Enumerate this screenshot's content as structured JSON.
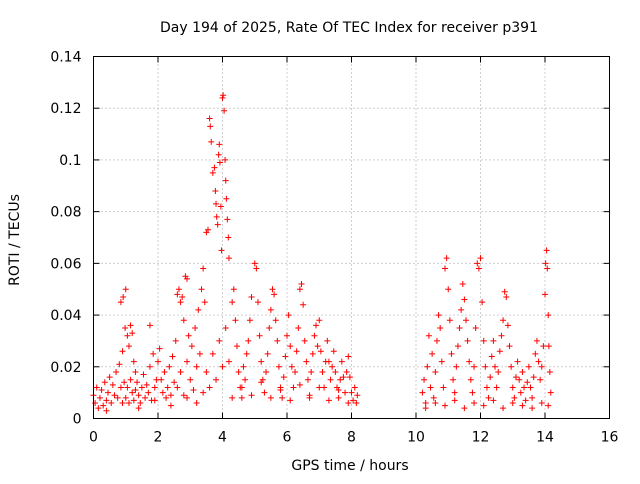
{
  "chart_data": {
    "type": "scatter",
    "title": "Day 194 of 2025, Rate Of TEC Index for receiver p391",
    "xlabel": "GPS time / hours",
    "ylabel": "ROTI / TECUs",
    "xlim": [
      0,
      16
    ],
    "ylim": [
      0,
      0.14
    ],
    "xticks": [
      0,
      2,
      4,
      6,
      8,
      10,
      12,
      14,
      16
    ],
    "xtick_labels": [
      "0",
      "2",
      "4",
      "6",
      "8",
      "10",
      "12",
      "14",
      "16"
    ],
    "yticks": [
      0,
      0.02,
      0.04,
      0.06,
      0.08,
      0.1,
      0.12,
      0.14
    ],
    "ytick_labels": [
      "0",
      "0.02",
      "0.04",
      "0.06",
      "0.08",
      "0.1",
      "0.12",
      "0.14"
    ],
    "grid": true,
    "marker": "+",
    "color": "#ff0000",
    "series": [
      {
        "name": "ROTI",
        "points": [
          [
            0.0,
            0.009
          ],
          [
            0.05,
            0.006
          ],
          [
            0.1,
            0.012
          ],
          [
            0.15,
            0.004
          ],
          [
            0.2,
            0.008
          ],
          [
            0.25,
            0.011
          ],
          [
            0.3,
            0.005
          ],
          [
            0.35,
            0.014
          ],
          [
            0.4,
            0.007
          ],
          [
            0.45,
            0.01
          ],
          [
            0.5,
            0.016
          ],
          [
            0.55,
            0.006
          ],
          [
            0.6,
            0.013
          ],
          [
            0.65,
            0.009
          ],
          [
            0.7,
            0.018
          ],
          [
            0.75,
            0.008
          ],
          [
            0.8,
            0.021
          ],
          [
            0.85,
            0.012
          ],
          [
            0.9,
            0.026
          ],
          [
            0.95,
            0.014
          ],
          [
            0.85,
            0.045
          ],
          [
            0.92,
            0.047
          ],
          [
            1.0,
            0.05
          ],
          [
            0.98,
            0.035
          ],
          [
            1.05,
            0.032
          ],
          [
            1.1,
            0.028
          ],
          [
            1.15,
            0.036
          ],
          [
            1.2,
            0.033
          ],
          [
            1.25,
            0.022
          ],
          [
            1.3,
            0.018
          ],
          [
            1.0,
            0.008
          ],
          [
            1.05,
            0.012
          ],
          [
            1.1,
            0.006
          ],
          [
            1.15,
            0.015
          ],
          [
            1.2,
            0.01
          ],
          [
            1.25,
            0.007
          ],
          [
            1.3,
            0.011
          ],
          [
            1.35,
            0.014
          ],
          [
            1.4,
            0.009
          ],
          [
            1.45,
            0.006
          ],
          [
            1.5,
            0.012
          ],
          [
            1.55,
            0.017
          ],
          [
            1.6,
            0.008
          ],
          [
            1.65,
            0.013
          ],
          [
            1.7,
            0.01
          ],
          [
            1.75,
            0.02
          ],
          [
            1.8,
            0.007
          ],
          [
            1.85,
            0.025
          ],
          [
            1.9,
            0.012
          ],
          [
            1.95,
            0.015
          ],
          [
            1.75,
            0.036
          ],
          [
            2.0,
            0.022
          ],
          [
            2.05,
            0.027
          ],
          [
            2.1,
            0.015
          ],
          [
            2.15,
            0.01
          ],
          [
            2.2,
            0.018
          ],
          [
            2.25,
            0.008
          ],
          [
            2.3,
            0.012
          ],
          [
            2.35,
            0.02
          ],
          [
            2.4,
            0.009
          ],
          [
            2.45,
            0.024
          ],
          [
            2.5,
            0.014
          ],
          [
            2.55,
            0.03
          ],
          [
            2.6,
            0.048
          ],
          [
            2.65,
            0.05
          ],
          [
            2.7,
            0.045
          ],
          [
            2.75,
            0.047
          ],
          [
            2.8,
            0.038
          ],
          [
            2.85,
            0.055
          ],
          [
            2.9,
            0.054
          ],
          [
            2.95,
            0.032
          ],
          [
            2.6,
            0.012
          ],
          [
            2.7,
            0.018
          ],
          [
            2.8,
            0.009
          ],
          [
            2.9,
            0.022
          ],
          [
            3.0,
            0.015
          ],
          [
            3.05,
            0.028
          ],
          [
            3.1,
            0.011
          ],
          [
            3.15,
            0.035
          ],
          [
            3.2,
            0.02
          ],
          [
            3.25,
            0.042
          ],
          [
            3.3,
            0.025
          ],
          [
            3.35,
            0.05
          ],
          [
            3.4,
            0.058
          ],
          [
            3.45,
            0.045
          ],
          [
            3.5,
            0.072
          ],
          [
            3.55,
            0.073
          ],
          [
            3.6,
            0.116
          ],
          [
            3.62,
            0.113
          ],
          [
            3.65,
            0.107
          ],
          [
            3.7,
            0.095
          ],
          [
            3.75,
            0.097
          ],
          [
            3.78,
            0.088
          ],
          [
            3.8,
            0.083
          ],
          [
            3.82,
            0.078
          ],
          [
            3.85,
            0.075
          ],
          [
            3.88,
            0.102
          ],
          [
            3.9,
            0.106
          ],
          [
            3.92,
            0.099
          ],
          [
            3.95,
            0.082
          ],
          [
            3.97,
            0.065
          ],
          [
            4.0,
            0.124
          ],
          [
            4.02,
            0.125
          ],
          [
            4.05,
            0.119
          ],
          [
            4.08,
            0.1
          ],
          [
            4.1,
            0.092
          ],
          [
            4.12,
            0.085
          ],
          [
            4.15,
            0.077
          ],
          [
            4.18,
            0.07
          ],
          [
            4.2,
            0.062
          ],
          [
            3.4,
            0.01
          ],
          [
            3.5,
            0.018
          ],
          [
            3.6,
            0.012
          ],
          [
            3.7,
            0.025
          ],
          [
            3.8,
            0.015
          ],
          [
            3.9,
            0.03
          ],
          [
            4.0,
            0.02
          ],
          [
            4.1,
            0.035
          ],
          [
            4.2,
            0.022
          ],
          [
            4.3,
            0.045
          ],
          [
            4.35,
            0.05
          ],
          [
            4.4,
            0.038
          ],
          [
            4.45,
            0.028
          ],
          [
            4.5,
            0.018
          ],
          [
            4.55,
            0.012
          ],
          [
            4.6,
            0.008
          ],
          [
            4.65,
            0.02
          ],
          [
            4.7,
            0.015
          ],
          [
            4.75,
            0.025
          ],
          [
            4.8,
            0.03
          ],
          [
            4.85,
            0.038
          ],
          [
            4.9,
            0.047
          ],
          [
            5.0,
            0.06
          ],
          [
            5.05,
            0.058
          ],
          [
            5.1,
            0.045
          ],
          [
            5.15,
            0.032
          ],
          [
            5.2,
            0.022
          ],
          [
            5.25,
            0.015
          ],
          [
            5.3,
            0.01
          ],
          [
            5.35,
            0.018
          ],
          [
            5.4,
            0.025
          ],
          [
            5.45,
            0.035
          ],
          [
            5.5,
            0.042
          ],
          [
            5.55,
            0.05
          ],
          [
            5.6,
            0.048
          ],
          [
            5.65,
            0.038
          ],
          [
            5.7,
            0.03
          ],
          [
            5.75,
            0.02
          ],
          [
            5.8,
            0.012
          ],
          [
            5.85,
            0.008
          ],
          [
            5.9,
            0.016
          ],
          [
            5.95,
            0.024
          ],
          [
            6.0,
            0.032
          ],
          [
            6.05,
            0.04
          ],
          [
            6.1,
            0.028
          ],
          [
            6.15,
            0.02
          ],
          [
            6.2,
            0.012
          ],
          [
            6.25,
            0.018
          ],
          [
            6.3,
            0.026
          ],
          [
            6.35,
            0.035
          ],
          [
            6.4,
            0.05
          ],
          [
            6.45,
            0.052
          ],
          [
            6.5,
            0.044
          ],
          [
            6.55,
            0.03
          ],
          [
            6.6,
            0.022
          ],
          [
            6.65,
            0.015
          ],
          [
            6.7,
            0.009
          ],
          [
            6.75,
            0.018
          ],
          [
            6.8,
            0.025
          ],
          [
            6.85,
            0.032
          ],
          [
            6.9,
            0.036
          ],
          [
            6.95,
            0.028
          ],
          [
            7.0,
            0.038
          ],
          [
            7.05,
            0.026
          ],
          [
            7.1,
            0.018
          ],
          [
            7.15,
            0.012
          ],
          [
            7.2,
            0.022
          ],
          [
            7.25,
            0.03
          ],
          [
            7.3,
            0.022
          ],
          [
            7.35,
            0.015
          ],
          [
            7.4,
            0.02
          ],
          [
            7.45,
            0.026
          ],
          [
            7.5,
            0.018
          ],
          [
            7.55,
            0.012
          ],
          [
            7.6,
            0.008
          ],
          [
            7.65,
            0.015
          ],
          [
            7.7,
            0.022
          ],
          [
            7.75,
            0.016
          ],
          [
            7.8,
            0.01
          ],
          [
            7.85,
            0.018
          ],
          [
            7.9,
            0.024
          ],
          [
            7.95,
            0.016
          ],
          [
            8.0,
            0.01
          ],
          [
            8.05,
            0.007
          ],
          [
            8.1,
            0.012
          ],
          [
            8.15,
            0.006
          ],
          [
            8.18,
            0.009
          ],
          [
            4.3,
            0.008
          ],
          [
            4.6,
            0.012
          ],
          [
            4.9,
            0.009
          ],
          [
            5.2,
            0.014
          ],
          [
            5.5,
            0.008
          ],
          [
            5.8,
            0.011
          ],
          [
            6.1,
            0.007
          ],
          [
            6.4,
            0.013
          ],
          [
            6.7,
            0.008
          ],
          [
            7.0,
            0.012
          ],
          [
            7.3,
            0.007
          ],
          [
            7.6,
            0.011
          ],
          [
            7.9,
            0.006
          ],
          [
            3.2,
            0.006
          ],
          [
            2.9,
            0.008
          ],
          [
            2.4,
            0.005
          ],
          [
            1.9,
            0.007
          ],
          [
            1.4,
            0.004
          ],
          [
            0.9,
            0.006
          ],
          [
            0.4,
            0.003
          ],
          [
            10.2,
            0.01
          ],
          [
            10.25,
            0.015
          ],
          [
            10.3,
            0.006
          ],
          [
            10.35,
            0.02
          ],
          [
            10.4,
            0.032
          ],
          [
            10.45,
            0.012
          ],
          [
            10.5,
            0.025
          ],
          [
            10.55,
            0.008
          ],
          [
            10.6,
            0.018
          ],
          [
            10.65,
            0.03
          ],
          [
            10.7,
            0.04
          ],
          [
            10.75,
            0.035
          ],
          [
            10.8,
            0.022
          ],
          [
            10.85,
            0.012
          ],
          [
            10.9,
            0.058
          ],
          [
            10.95,
            0.062
          ],
          [
            11.0,
            0.05
          ],
          [
            11.05,
            0.038
          ],
          [
            11.1,
            0.025
          ],
          [
            11.15,
            0.015
          ],
          [
            11.2,
            0.01
          ],
          [
            11.25,
            0.02
          ],
          [
            11.3,
            0.028
          ],
          [
            11.35,
            0.035
          ],
          [
            11.4,
            0.042
          ],
          [
            11.45,
            0.052
          ],
          [
            11.5,
            0.046
          ],
          [
            11.55,
            0.038
          ],
          [
            11.6,
            0.03
          ],
          [
            11.65,
            0.022
          ],
          [
            11.7,
            0.015
          ],
          [
            11.75,
            0.01
          ],
          [
            11.8,
            0.02
          ],
          [
            11.85,
            0.035
          ],
          [
            11.9,
            0.06
          ],
          [
            11.95,
            0.058
          ],
          [
            12.0,
            0.062
          ],
          [
            12.05,
            0.045
          ],
          [
            12.1,
            0.03
          ],
          [
            12.15,
            0.02
          ],
          [
            12.2,
            0.012
          ],
          [
            12.25,
            0.008
          ],
          [
            12.3,
            0.016
          ],
          [
            12.35,
            0.024
          ],
          [
            12.4,
            0.03
          ],
          [
            12.45,
            0.02
          ],
          [
            12.5,
            0.012
          ],
          [
            12.55,
            0.018
          ],
          [
            12.6,
            0.026
          ],
          [
            12.65,
            0.032
          ],
          [
            12.7,
            0.038
          ],
          [
            12.75,
            0.049
          ],
          [
            12.8,
            0.047
          ],
          [
            12.85,
            0.036
          ],
          [
            12.9,
            0.028
          ],
          [
            12.95,
            0.02
          ],
          [
            13.0,
            0.012
          ],
          [
            13.05,
            0.008
          ],
          [
            13.1,
            0.016
          ],
          [
            13.15,
            0.022
          ],
          [
            13.2,
            0.015
          ],
          [
            13.25,
            0.01
          ],
          [
            13.3,
            0.018
          ],
          [
            13.35,
            0.012
          ],
          [
            13.4,
            0.007
          ],
          [
            13.45,
            0.014
          ],
          [
            13.5,
            0.02
          ],
          [
            13.55,
            0.012
          ],
          [
            13.6,
            0.008
          ],
          [
            13.65,
            0.016
          ],
          [
            13.7,
            0.025
          ],
          [
            13.75,
            0.03
          ],
          [
            13.8,
            0.022
          ],
          [
            13.85,
            0.015
          ],
          [
            13.9,
            0.02
          ],
          [
            13.95,
            0.028
          ],
          [
            14.0,
            0.048
          ],
          [
            14.02,
            0.06
          ],
          [
            14.05,
            0.065
          ],
          [
            14.07,
            0.058
          ],
          [
            14.1,
            0.04
          ],
          [
            14.12,
            0.028
          ],
          [
            14.15,
            0.018
          ],
          [
            14.18,
            0.01
          ],
          [
            10.3,
            0.004
          ],
          [
            10.6,
            0.006
          ],
          [
            10.9,
            0.005
          ],
          [
            11.2,
            0.007
          ],
          [
            11.5,
            0.004
          ],
          [
            11.8,
            0.006
          ],
          [
            12.1,
            0.005
          ],
          [
            12.4,
            0.007
          ],
          [
            12.7,
            0.004
          ],
          [
            13.0,
            0.006
          ],
          [
            13.3,
            0.005
          ],
          [
            13.6,
            0.004
          ],
          [
            13.9,
            0.006
          ],
          [
            14.1,
            0.005
          ]
        ]
      }
    ]
  }
}
